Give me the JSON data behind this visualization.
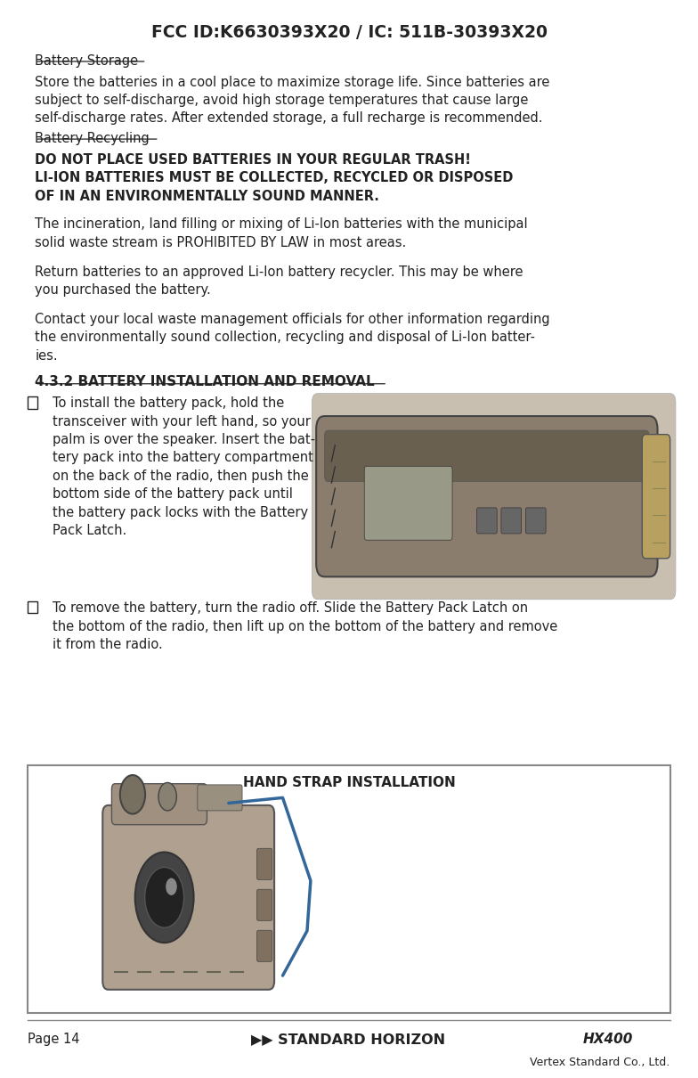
{
  "title": "FCC ID:K6630393X20 / IC: 511B-30393X20",
  "bg_color": "#ffffff",
  "text_color": "#222222",
  "footer_page": "Page 14",
  "footer_brand": "STANDARD HORIZON",
  "footer_model": "HX400",
  "footer_company": "Vertex Standard Co., Ltd.",
  "box_title": "HAND STRAP INSTALLATION"
}
